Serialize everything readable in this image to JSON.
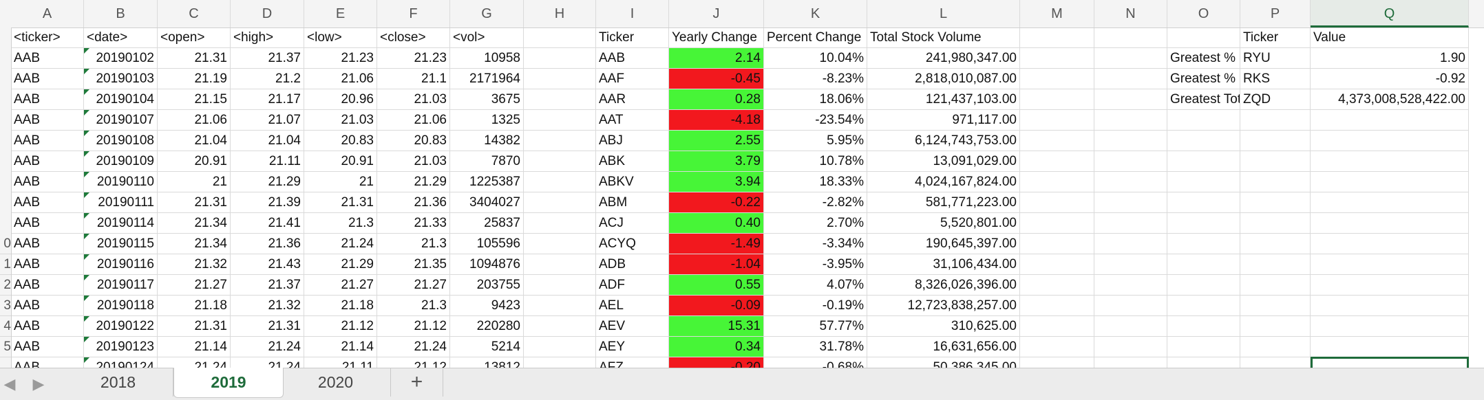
{
  "columns": [
    "A",
    "B",
    "C",
    "D",
    "E",
    "F",
    "G",
    "H",
    "I",
    "J",
    "K",
    "L",
    "M",
    "N",
    "O",
    "P",
    "Q"
  ],
  "selected_column": "Q",
  "row_header_digits": [
    "0",
    "1",
    "2",
    "3",
    "4",
    "5"
  ],
  "headers": {
    "A": "<ticker>",
    "B": "<date>",
    "C": "<open>",
    "D": "<high>",
    "E": "<low>",
    "F": "<close>",
    "G": "<vol>",
    "I": "Ticker",
    "J": "Yearly Change",
    "K": "Percent Change",
    "L": "Total Stock Volume",
    "P": "Ticker",
    "Q": "Value"
  },
  "raw_rows": [
    [
      "AAB",
      "20190102",
      "21.31",
      "21.37",
      "21.23",
      "21.23",
      "10958"
    ],
    [
      "AAB",
      "20190103",
      "21.19",
      "21.2",
      "21.06",
      "21.1",
      "2171964"
    ],
    [
      "AAB",
      "20190104",
      "21.15",
      "21.17",
      "20.96",
      "21.03",
      "3675"
    ],
    [
      "AAB",
      "20190107",
      "21.06",
      "21.07",
      "21.03",
      "21.06",
      "1325"
    ],
    [
      "AAB",
      "20190108",
      "21.04",
      "21.04",
      "20.83",
      "20.83",
      "14382"
    ],
    [
      "AAB",
      "20190109",
      "20.91",
      "21.11",
      "20.91",
      "21.03",
      "7870"
    ],
    [
      "AAB",
      "20190110",
      "21",
      "21.29",
      "21",
      "21.29",
      "1225387"
    ],
    [
      "AAB",
      "20190111",
      "21.31",
      "21.39",
      "21.31",
      "21.36",
      "3404027"
    ],
    [
      "AAB",
      "20190114",
      "21.34",
      "21.41",
      "21.3",
      "21.33",
      "25837"
    ],
    [
      "AAB",
      "20190115",
      "21.34",
      "21.36",
      "21.24",
      "21.3",
      "105596"
    ],
    [
      "AAB",
      "20190116",
      "21.32",
      "21.43",
      "21.29",
      "21.35",
      "1094876"
    ],
    [
      "AAB",
      "20190117",
      "21.27",
      "21.37",
      "21.27",
      "21.27",
      "203755"
    ],
    [
      "AAB",
      "20190118",
      "21.18",
      "21.32",
      "21.18",
      "21.3",
      "9423"
    ],
    [
      "AAB",
      "20190122",
      "21.31",
      "21.31",
      "21.12",
      "21.12",
      "220280"
    ],
    [
      "AAB",
      "20190123",
      "21.14",
      "21.24",
      "21.14",
      "21.24",
      "5214"
    ],
    [
      "AAB",
      "20190124",
      "21.24",
      "21.24",
      "21.11",
      "21.12",
      "13812"
    ]
  ],
  "summary_rows": [
    {
      "ticker": "AAB",
      "change": "2.14",
      "color": "green",
      "pct": "10.04%",
      "volume": "241,980,347.00"
    },
    {
      "ticker": "AAF",
      "change": "-0.45",
      "color": "red",
      "pct": "-8.23%",
      "volume": "2,818,010,087.00"
    },
    {
      "ticker": "AAR",
      "change": "0.28",
      "color": "green",
      "pct": "18.06%",
      "volume": "121,437,103.00"
    },
    {
      "ticker": "AAT",
      "change": "-4.18",
      "color": "red",
      "pct": "-23.54%",
      "volume": "971,117.00"
    },
    {
      "ticker": "ABJ",
      "change": "2.55",
      "color": "green",
      "pct": "5.95%",
      "volume": "6,124,743,753.00"
    },
    {
      "ticker": "ABK",
      "change": "3.79",
      "color": "green",
      "pct": "10.78%",
      "volume": "13,091,029.00"
    },
    {
      "ticker": "ABKV",
      "change": "3.94",
      "color": "green",
      "pct": "18.33%",
      "volume": "4,024,167,824.00"
    },
    {
      "ticker": "ABM",
      "change": "-0.22",
      "color": "red",
      "pct": "-2.82%",
      "volume": "581,771,223.00"
    },
    {
      "ticker": "ACJ",
      "change": "0.40",
      "color": "green",
      "pct": "2.70%",
      "volume": "5,520,801.00"
    },
    {
      "ticker": "ACYQ",
      "change": "-1.49",
      "color": "red",
      "pct": "-3.34%",
      "volume": "190,645,397.00"
    },
    {
      "ticker": "ADB",
      "change": "-1.04",
      "color": "red",
      "pct": "-3.95%",
      "volume": "31,106,434.00"
    },
    {
      "ticker": "ADF",
      "change": "0.55",
      "color": "green",
      "pct": "4.07%",
      "volume": "8,326,026,396.00"
    },
    {
      "ticker": "AEL",
      "change": "-0.09",
      "color": "red",
      "pct": "-0.19%",
      "volume": "12,723,838,257.00"
    },
    {
      "ticker": "AEV",
      "change": "15.31",
      "color": "green",
      "pct": "57.77%",
      "volume": "310,625.00"
    },
    {
      "ticker": "AEY",
      "change": "0.34",
      "color": "green",
      "pct": "31.78%",
      "volume": "16,631,656.00"
    },
    {
      "ticker": "AFZ",
      "change": "-0.20",
      "color": "red",
      "pct": "-0.68%",
      "volume": "50,386,345.00"
    }
  ],
  "greatest": [
    {
      "label": "Greatest % Increase",
      "ticker": "RYU",
      "value": "1.90"
    },
    {
      "label": "Greatest % Decrease",
      "ticker": "RKS",
      "value": "-0.92"
    },
    {
      "label": "Greatest Total Volume",
      "ticker": "ZQD",
      "value": "4,373,008,528,422.00"
    }
  ],
  "sheet_tabs": [
    {
      "label": "2018",
      "active": false
    },
    {
      "label": "2019",
      "active": true
    },
    {
      "label": "2020",
      "active": false
    }
  ],
  "add_sheet_label": "+",
  "nav_prev": "◀",
  "nav_next": "▶",
  "colors": {
    "positive": "#47f537",
    "negative": "#f2181e",
    "accent": "#1e6b3a"
  }
}
